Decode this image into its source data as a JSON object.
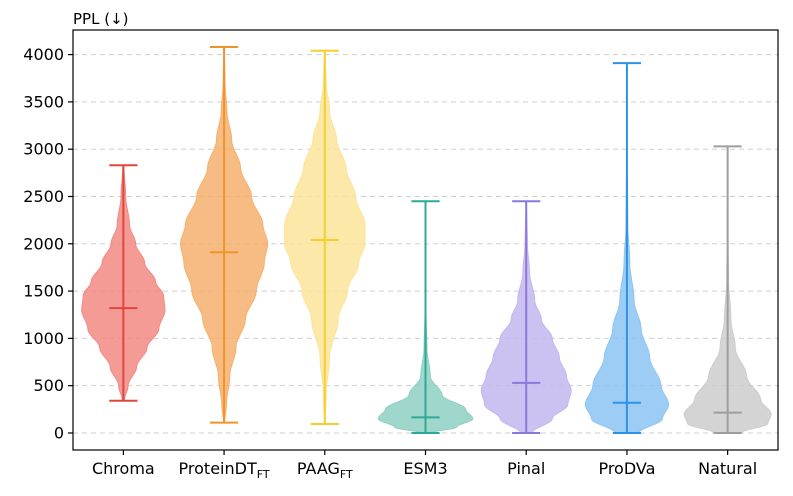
{
  "chart_data": {
    "type": "violin",
    "ylabel": "PPL (↓)",
    "ylim": [
      -180,
      4260
    ],
    "yticks": [
      0,
      500,
      1000,
      1500,
      2000,
      2500,
      3000,
      3500,
      4000
    ],
    "grid": true,
    "categories": [
      {
        "label": "Chroma",
        "sub": ""
      },
      {
        "label": "ProteinDT",
        "sub": "FT"
      },
      {
        "label": "PAAG",
        "sub": "FT"
      },
      {
        "label": "ESM3",
        "sub": ""
      },
      {
        "label": "Pinal",
        "sub": ""
      },
      {
        "label": "ProDVa",
        "sub": ""
      },
      {
        "label": "Natural",
        "sub": ""
      }
    ],
    "series": [
      {
        "min": 340,
        "max": 2830,
        "median": 1320,
        "color": "#e0463e",
        "fill": "#f28a84",
        "density": [
          [
            340,
            0.02
          ],
          [
            500,
            0.1
          ],
          [
            700,
            0.28
          ],
          [
            900,
            0.5
          ],
          [
            1100,
            0.75
          ],
          [
            1300,
            0.88
          ],
          [
            1450,
            0.85
          ],
          [
            1600,
            0.68
          ],
          [
            1800,
            0.45
          ],
          [
            2000,
            0.26
          ],
          [
            2200,
            0.13
          ],
          [
            2500,
            0.05
          ],
          [
            2830,
            0.01
          ]
        ]
      },
      {
        "min": 110,
        "max": 4080,
        "median": 1910,
        "color": "#f2932a",
        "fill": "#f5b06d",
        "density": [
          [
            110,
            0.01
          ],
          [
            300,
            0.05
          ],
          [
            600,
            0.12
          ],
          [
            900,
            0.25
          ],
          [
            1200,
            0.45
          ],
          [
            1500,
            0.68
          ],
          [
            1800,
            0.85
          ],
          [
            2000,
            0.92
          ],
          [
            2200,
            0.82
          ],
          [
            2500,
            0.58
          ],
          [
            2800,
            0.35
          ],
          [
            3100,
            0.16
          ],
          [
            3400,
            0.06
          ],
          [
            3700,
            0.02
          ],
          [
            4080,
            0.005
          ]
        ]
      },
      {
        "min": 95,
        "max": 4040,
        "median": 2040,
        "color": "#f7cf2b",
        "fill": "#fbe49a",
        "density": [
          [
            95,
            0.005
          ],
          [
            400,
            0.03
          ],
          [
            800,
            0.1
          ],
          [
            1200,
            0.28
          ],
          [
            1500,
            0.48
          ],
          [
            1800,
            0.72
          ],
          [
            2000,
            0.85
          ],
          [
            2200,
            0.85
          ],
          [
            2500,
            0.65
          ],
          [
            2800,
            0.45
          ],
          [
            3100,
            0.25
          ],
          [
            3400,
            0.1
          ],
          [
            3700,
            0.03
          ],
          [
            4040,
            0.005
          ]
        ]
      },
      {
        "min": 0,
        "max": 2450,
        "median": 165,
        "color": "#2fa896",
        "fill": "#8fd0c3",
        "density": [
          [
            0,
            0.1
          ],
          [
            60,
            0.65
          ],
          [
            150,
            1.0
          ],
          [
            250,
            0.85
          ],
          [
            400,
            0.35
          ],
          [
            600,
            0.1
          ],
          [
            900,
            0.03
          ],
          [
            1300,
            0.01
          ],
          [
            1800,
            0.004
          ],
          [
            2450,
            0.001
          ]
        ]
      },
      {
        "min": 0,
        "max": 2450,
        "median": 530,
        "color": "#8c78dd",
        "fill": "#c3b7f0",
        "density": [
          [
            0,
            0.12
          ],
          [
            150,
            0.55
          ],
          [
            300,
            0.88
          ],
          [
            450,
            0.95
          ],
          [
            600,
            0.85
          ],
          [
            800,
            0.7
          ],
          [
            1000,
            0.55
          ],
          [
            1200,
            0.32
          ],
          [
            1400,
            0.18
          ],
          [
            1700,
            0.07
          ],
          [
            2000,
            0.025
          ],
          [
            2450,
            0.005
          ]
        ]
      },
      {
        "min": 0,
        "max": 3910,
        "median": 320,
        "color": "#2e93e6",
        "fill": "#8cc4f2",
        "density": [
          [
            0,
            0.25
          ],
          [
            150,
            0.75
          ],
          [
            300,
            0.88
          ],
          [
            500,
            0.72
          ],
          [
            800,
            0.48
          ],
          [
            1100,
            0.3
          ],
          [
            1400,
            0.15
          ],
          [
            1800,
            0.06
          ],
          [
            2200,
            0.02
          ],
          [
            3000,
            0.005
          ],
          [
            3910,
            0.001
          ]
        ]
      },
      {
        "min": 0,
        "max": 3030,
        "median": 215,
        "color": "#9e9e9e",
        "fill": "#cccccc",
        "density": [
          [
            0,
            0.28
          ],
          [
            100,
            0.85
          ],
          [
            200,
            0.92
          ],
          [
            350,
            0.7
          ],
          [
            600,
            0.4
          ],
          [
            900,
            0.16
          ],
          [
            1200,
            0.07
          ],
          [
            1600,
            0.02
          ],
          [
            2200,
            0.006
          ],
          [
            3030,
            0.001
          ]
        ]
      }
    ]
  }
}
